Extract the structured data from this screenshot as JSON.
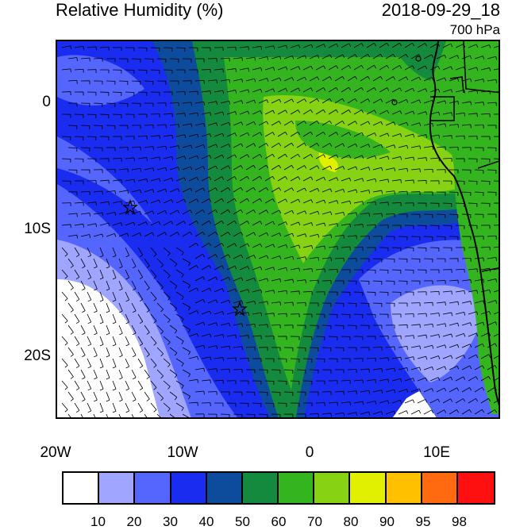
{
  "header": {
    "title": "Relative Humidity (%)",
    "datetime": "2018-09-29_18",
    "level": "700 hPa"
  },
  "map": {
    "lat_labels": [
      "0",
      "10S",
      "20S"
    ],
    "lon_labels": [
      "20W",
      "10W",
      "0",
      "10E"
    ],
    "markers": [
      "star-marker",
      "star-marker"
    ]
  },
  "colorbar": {
    "colors": [
      "#ffffff",
      "#a0a6ff",
      "#5566ff",
      "#1a2cf0",
      "#0d4b9c",
      "#138a3d",
      "#34b41e",
      "#88d214",
      "#e0f000",
      "#ffc000",
      "#ff6a10",
      "#ff1010"
    ],
    "labels": [
      "10",
      "20",
      "30",
      "40",
      "50",
      "60",
      "70",
      "80",
      "90",
      "95",
      "98"
    ]
  }
}
